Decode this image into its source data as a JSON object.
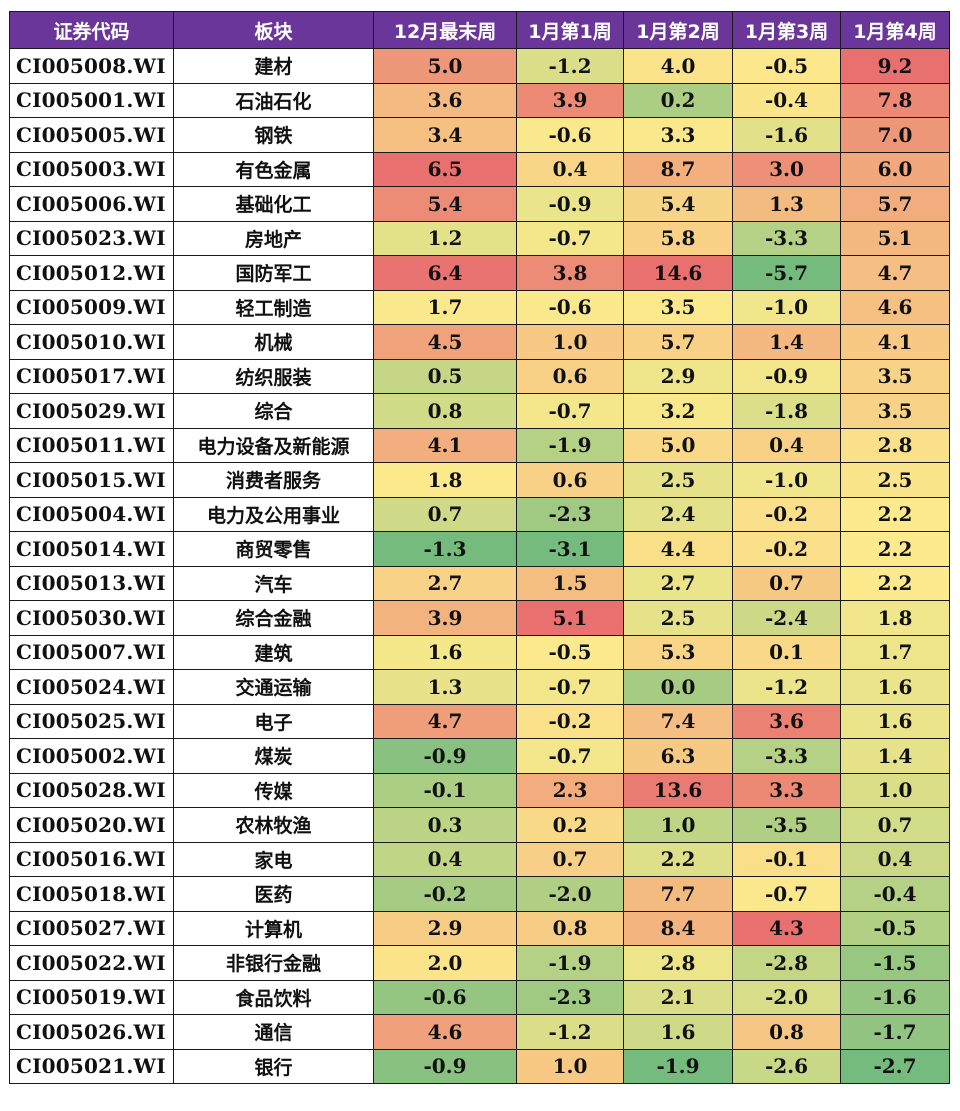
{
  "table": {
    "headers": [
      "证券代码",
      "板块",
      "12月最末周",
      "1月第1周",
      "1月第2周",
      "1月第3周",
      "1月第4周"
    ],
    "colors": {
      "header_bg": "#6a3699",
      "header_text": "#ffffff",
      "scale_low": "#76bb7e",
      "scale_mid": "#fcea8c",
      "scale_high": "#e8706f"
    },
    "rows": [
      {
        "code": "CI005008.WI",
        "sector": "建材",
        "values": [
          5.0,
          -1.2,
          4.0,
          -0.5,
          9.2
        ]
      },
      {
        "code": "CI005001.WI",
        "sector": "石油石化",
        "values": [
          3.6,
          3.9,
          0.2,
          -0.4,
          7.8
        ]
      },
      {
        "code": "CI005005.WI",
        "sector": "钢铁",
        "values": [
          3.4,
          -0.6,
          3.3,
          -1.6,
          7.0
        ]
      },
      {
        "code": "CI005003.WI",
        "sector": "有色金属",
        "values": [
          6.5,
          0.4,
          8.7,
          3.0,
          6.0
        ]
      },
      {
        "code": "CI005006.WI",
        "sector": "基础化工",
        "values": [
          5.4,
          -0.9,
          5.4,
          1.3,
          5.7
        ]
      },
      {
        "code": "CI005023.WI",
        "sector": "房地产",
        "values": [
          1.2,
          -0.7,
          5.8,
          -3.3,
          5.1
        ]
      },
      {
        "code": "CI005012.WI",
        "sector": "国防军工",
        "values": [
          6.4,
          3.8,
          14.6,
          -5.7,
          4.7
        ]
      },
      {
        "code": "CI005009.WI",
        "sector": "轻工制造",
        "values": [
          1.7,
          -0.6,
          3.5,
          -1.0,
          4.6
        ]
      },
      {
        "code": "CI005010.WI",
        "sector": "机械",
        "values": [
          4.5,
          1.0,
          5.7,
          1.4,
          4.1
        ]
      },
      {
        "code": "CI005017.WI",
        "sector": "纺织服装",
        "values": [
          0.5,
          0.6,
          2.9,
          -0.9,
          3.5
        ]
      },
      {
        "code": "CI005029.WI",
        "sector": "综合",
        "values": [
          0.8,
          -0.7,
          3.2,
          -1.8,
          3.5
        ]
      },
      {
        "code": "CI005011.WI",
        "sector": "电力设备及新能源",
        "values": [
          4.1,
          -1.9,
          5.0,
          0.4,
          2.8
        ]
      },
      {
        "code": "CI005015.WI",
        "sector": "消费者服务",
        "values": [
          1.8,
          0.6,
          2.5,
          -1.0,
          2.5
        ]
      },
      {
        "code": "CI005004.WI",
        "sector": "电力及公用事业",
        "values": [
          0.7,
          -2.3,
          2.4,
          -0.2,
          2.2
        ]
      },
      {
        "code": "CI005014.WI",
        "sector": "商贸零售",
        "values": [
          -1.3,
          -3.1,
          4.4,
          -0.2,
          2.2
        ]
      },
      {
        "code": "CI005013.WI",
        "sector": "汽车",
        "values": [
          2.7,
          1.5,
          2.7,
          0.7,
          2.2
        ]
      },
      {
        "code": "CI005030.WI",
        "sector": "综合金融",
        "values": [
          3.9,
          5.1,
          2.5,
          -2.4,
          1.8
        ]
      },
      {
        "code": "CI005007.WI",
        "sector": "建筑",
        "values": [
          1.6,
          -0.5,
          5.3,
          0.1,
          1.7
        ]
      },
      {
        "code": "CI005024.WI",
        "sector": "交通运输",
        "values": [
          1.3,
          -0.7,
          0.0,
          -1.2,
          1.6
        ]
      },
      {
        "code": "CI005025.WI",
        "sector": "电子",
        "values": [
          4.7,
          -0.2,
          7.4,
          3.6,
          1.6
        ]
      },
      {
        "code": "CI005002.WI",
        "sector": "煤炭",
        "values": [
          -0.9,
          -0.7,
          6.3,
          -3.3,
          1.4
        ]
      },
      {
        "code": "CI005028.WI",
        "sector": "传媒",
        "values": [
          -0.1,
          2.3,
          13.6,
          3.3,
          1.0
        ]
      },
      {
        "code": "CI005020.WI",
        "sector": "农林牧渔",
        "values": [
          0.3,
          0.2,
          1.0,
          -3.5,
          0.7
        ]
      },
      {
        "code": "CI005016.WI",
        "sector": "家电",
        "values": [
          0.4,
          0.7,
          2.2,
          -0.1,
          0.4
        ]
      },
      {
        "code": "CI005018.WI",
        "sector": "医药",
        "values": [
          -0.2,
          -2.0,
          7.7,
          -0.7,
          -0.4
        ]
      },
      {
        "code": "CI005027.WI",
        "sector": "计算机",
        "values": [
          2.9,
          0.8,
          8.4,
          4.3,
          -0.5
        ]
      },
      {
        "code": "CI005022.WI",
        "sector": "非银行金融",
        "values": [
          2.0,
          -1.9,
          2.8,
          -2.8,
          -1.5
        ]
      },
      {
        "code": "CI005019.WI",
        "sector": "食品饮料",
        "values": [
          -0.6,
          -2.3,
          2.1,
          -2.0,
          -1.6
        ]
      },
      {
        "code": "CI005026.WI",
        "sector": "通信",
        "values": [
          4.6,
          -1.2,
          1.6,
          0.8,
          -1.7
        ]
      },
      {
        "code": "CI005021.WI",
        "sector": "银行",
        "values": [
          -0.9,
          1.0,
          -1.9,
          -2.6,
          -2.7
        ]
      }
    ]
  },
  "chart_data": {
    "type": "heatmap",
    "title": "",
    "row_labels": [
      "CI005008.WI 建材",
      "CI005001.WI 石油石化",
      "CI005005.WI 钢铁",
      "CI005003.WI 有色金属",
      "CI005006.WI 基础化工",
      "CI005023.WI 房地产",
      "CI005012.WI 国防军工",
      "CI005009.WI 轻工制造",
      "CI005010.WI 机械",
      "CI005017.WI 纺织服装",
      "CI005029.WI 综合",
      "CI005011.WI 电力设备及新能源",
      "CI005015.WI 消费者服务",
      "CI005004.WI 电力及公用事业",
      "CI005014.WI 商贸零售",
      "CI005013.WI 汽车",
      "CI005030.WI 综合金融",
      "CI005007.WI 建筑",
      "CI005024.WI 交通运输",
      "CI005025.WI 电子",
      "CI005002.WI 煤炭",
      "CI005028.WI 传媒",
      "CI005020.WI 农林牧渔",
      "CI005016.WI 家电",
      "CI005018.WI 医药",
      "CI005027.WI 计算机",
      "CI005022.WI 非银行金融",
      "CI005019.WI 食品饮料",
      "CI005026.WI 通信",
      "CI005021.WI 银行"
    ],
    "categories": [
      "12月最末周",
      "1月第1周",
      "1月第2周",
      "1月第3周",
      "1月第4周"
    ],
    "series": [
      {
        "name": "12月最末周",
        "values": [
          5.0,
          3.6,
          3.4,
          6.5,
          5.4,
          1.2,
          6.4,
          1.7,
          4.5,
          0.5,
          0.8,
          4.1,
          1.8,
          0.7,
          -1.3,
          2.7,
          3.9,
          1.6,
          1.3,
          4.7,
          -0.9,
          -0.1,
          0.3,
          0.4,
          -0.2,
          2.9,
          2.0,
          -0.6,
          4.6,
          -0.9
        ]
      },
      {
        "name": "1月第1周",
        "values": [
          -1.2,
          3.9,
          -0.6,
          0.4,
          -0.9,
          -0.7,
          3.8,
          -0.6,
          1.0,
          0.6,
          -0.7,
          -1.9,
          0.6,
          -2.3,
          -3.1,
          1.5,
          5.1,
          -0.5,
          -0.7,
          -0.2,
          -0.7,
          2.3,
          0.2,
          0.7,
          -2.0,
          0.8,
          -1.9,
          -2.3,
          -1.2,
          1.0
        ]
      },
      {
        "name": "1月第2周",
        "values": [
          4.0,
          0.2,
          3.3,
          8.7,
          5.4,
          5.8,
          14.6,
          3.5,
          5.7,
          2.9,
          3.2,
          5.0,
          2.5,
          2.4,
          4.4,
          2.7,
          2.5,
          5.3,
          0.0,
          7.4,
          6.3,
          13.6,
          1.0,
          2.2,
          7.7,
          8.4,
          2.8,
          2.1,
          1.6,
          -1.9
        ]
      },
      {
        "name": "1月第3周",
        "values": [
          -0.5,
          -0.4,
          -1.6,
          3.0,
          1.3,
          -3.3,
          -5.7,
          -1.0,
          1.4,
          -0.9,
          -1.8,
          0.4,
          -1.0,
          -0.2,
          -0.2,
          0.7,
          -2.4,
          0.1,
          -1.2,
          3.6,
          -3.3,
          3.3,
          -3.5,
          -0.1,
          -0.7,
          4.3,
          -2.8,
          -2.0,
          0.8,
          -2.6
        ]
      },
      {
        "name": "1月第4周",
        "values": [
          9.2,
          7.8,
          7.0,
          6.0,
          5.7,
          5.1,
          4.7,
          4.6,
          4.1,
          3.5,
          3.5,
          2.8,
          2.5,
          2.2,
          2.2,
          2.2,
          1.8,
          1.7,
          1.6,
          1.6,
          1.4,
          1.0,
          0.7,
          0.4,
          -0.4,
          -0.5,
          -1.5,
          -1.6,
          -1.7,
          -2.7
        ]
      }
    ],
    "color_scale": "per-column green(min)-yellow(median)-red(max)",
    "legend": "none",
    "grid": true
  }
}
